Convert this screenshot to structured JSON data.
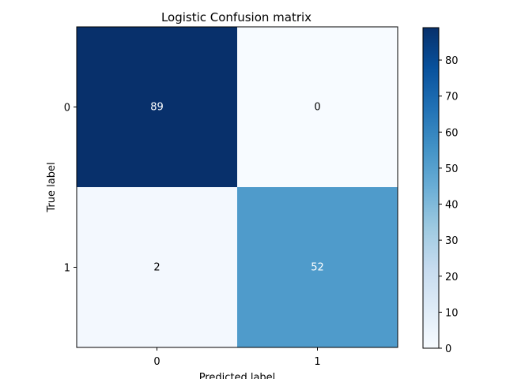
{
  "chart_data": {
    "type": "heatmap",
    "title": "Logistic Confusion matrix",
    "xlabel": "Predicted label",
    "ylabel": "True label",
    "x_categories": [
      "0",
      "1"
    ],
    "y_categories": [
      "0",
      "1"
    ],
    "values": [
      [
        89,
        0
      ],
      [
        2,
        52
      ]
    ],
    "colormap": "Blues",
    "colorbar": {
      "range": [
        0,
        89
      ],
      "ticks": [
        0,
        10,
        20,
        30,
        40,
        50,
        60,
        70,
        80
      ],
      "tick_labels": [
        "0",
        "10",
        "20",
        "30",
        "40",
        "50",
        "60",
        "70",
        "80"
      ]
    },
    "label_colors": {
      "light": "#ffffff",
      "dark": "#000000"
    }
  }
}
